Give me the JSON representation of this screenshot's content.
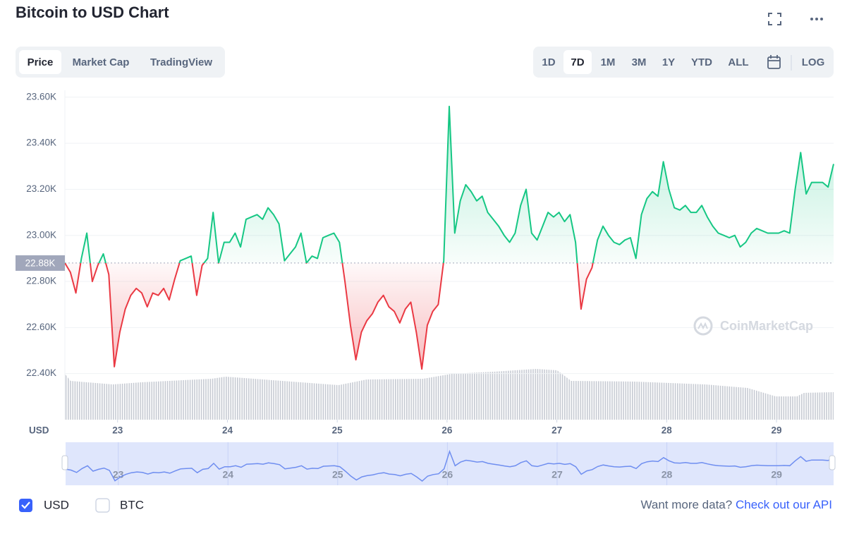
{
  "header": {
    "title": "Bitcoin to USD Chart"
  },
  "tabs": [
    "Price",
    "Market Cap",
    "TradingView"
  ],
  "ranges": [
    "1D",
    "7D",
    "1M",
    "3M",
    "1Y",
    "YTD",
    "ALL"
  ],
  "log_button": "LOG",
  "chart_data": {
    "type": "line",
    "y_label": "USD",
    "watermark": "CoinMarketCap",
    "x": [
      22.52,
      22.57,
      22.62,
      22.67,
      22.72,
      22.77,
      22.82,
      22.87,
      22.92,
      22.97,
      23.02,
      23.07,
      23.12,
      23.17,
      23.22,
      23.27,
      23.32,
      23.37,
      23.42,
      23.47,
      23.52,
      23.57,
      23.62,
      23.67,
      23.72,
      23.77,
      23.82,
      23.87,
      23.92,
      23.97,
      24.02,
      24.07,
      24.12,
      24.17,
      24.22,
      24.27,
      24.32,
      24.37,
      24.42,
      24.47,
      24.52,
      24.57,
      24.62,
      24.67,
      24.72,
      24.77,
      24.82,
      24.87,
      24.92,
      24.97,
      25.02,
      25.07,
      25.12,
      25.17,
      25.22,
      25.27,
      25.32,
      25.37,
      25.42,
      25.47,
      25.52,
      25.57,
      25.62,
      25.67,
      25.72,
      25.77,
      25.82,
      25.87,
      25.92,
      25.97,
      26.02,
      26.07,
      26.12,
      26.17,
      26.22,
      26.27,
      26.32,
      26.37,
      26.42,
      26.47,
      26.52,
      26.57,
      26.62,
      26.67,
      26.72,
      26.77,
      26.82,
      26.87,
      26.92,
      26.97,
      27.02,
      27.07,
      27.12,
      27.17,
      27.22,
      27.27,
      27.32,
      27.37,
      27.42,
      27.47,
      27.52,
      27.57,
      27.62,
      27.67,
      27.72,
      27.77,
      27.82,
      27.87,
      27.92,
      27.97,
      28.02,
      28.07,
      28.12,
      28.17,
      28.22,
      28.27,
      28.32,
      28.37,
      28.42,
      28.47,
      28.52,
      28.57,
      28.62,
      28.67,
      28.72,
      28.77,
      28.82,
      28.87,
      28.92,
      28.97,
      29.02,
      29.07,
      29.12,
      29.17,
      29.22,
      29.27,
      29.32,
      29.37,
      29.42,
      29.47,
      29.52
    ],
    "values": [
      22880,
      22840,
      22750,
      22900,
      23010,
      22800,
      22870,
      22920,
      22830,
      22430,
      22580,
      22680,
      22740,
      22770,
      22750,
      22690,
      22750,
      22740,
      22770,
      22720,
      22810,
      22890,
      22900,
      22910,
      22740,
      22870,
      22900,
      23100,
      22880,
      22970,
      22970,
      23010,
      22950,
      23070,
      23080,
      23090,
      23070,
      23120,
      23090,
      23050,
      22890,
      22920,
      22950,
      23010,
      22880,
      22910,
      22900,
      22990,
      23000,
      23010,
      22970,
      22800,
      22610,
      22460,
      22580,
      22630,
      22660,
      22710,
      22740,
      22690,
      22670,
      22620,
      22680,
      22710,
      22580,
      22420,
      22610,
      22670,
      22700,
      22890,
      23560,
      23010,
      23150,
      23220,
      23190,
      23150,
      23170,
      23100,
      23070,
      23040,
      23000,
      22970,
      23010,
      23130,
      23200,
      23010,
      22980,
      23040,
      23100,
      23080,
      23100,
      23060,
      23090,
      22970,
      22680,
      22810,
      22860,
      22980,
      23040,
      23000,
      22970,
      22960,
      22980,
      22990,
      22900,
      23090,
      23160,
      23190,
      23170,
      23320,
      23200,
      23120,
      23110,
      23130,
      23100,
      23100,
      23130,
      23080,
      23040,
      23010,
      23000,
      22990,
      23000,
      22950,
      22970,
      23010,
      23030,
      23020,
      23010,
      23010,
      23010,
      23020,
      23010,
      23200,
      23360,
      23180,
      23230,
      23230,
      23230,
      23210,
      23310
    ],
    "colors": {
      "up": "#16c784",
      "down": "#ea3943",
      "navigator": "#6f8ef0"
    },
    "baseline": {
      "value": 22880,
      "label": "22.88K"
    },
    "xlim": [
      22.52,
      29.52
    ],
    "xticks": [
      23,
      24,
      25,
      26,
      27,
      28,
      29
    ],
    "ylim": [
      22200,
      23630
    ],
    "yticks": [
      {
        "value": 22400,
        "label": "22.40K"
      },
      {
        "value": 22600,
        "label": "22.60K"
      },
      {
        "value": 22800,
        "label": "22.80K"
      },
      {
        "value": 23000,
        "label": "23.00K"
      },
      {
        "value": 23200,
        "label": "23.20K"
      },
      {
        "value": 23400,
        "label": "23.40K"
      },
      {
        "value": 23600,
        "label": "23.60K"
      }
    ],
    "grid": true
  },
  "footer": {
    "currencies": [
      "USD",
      "BTC"
    ],
    "prompt": "Want more data?",
    "link": "Check out our API"
  }
}
